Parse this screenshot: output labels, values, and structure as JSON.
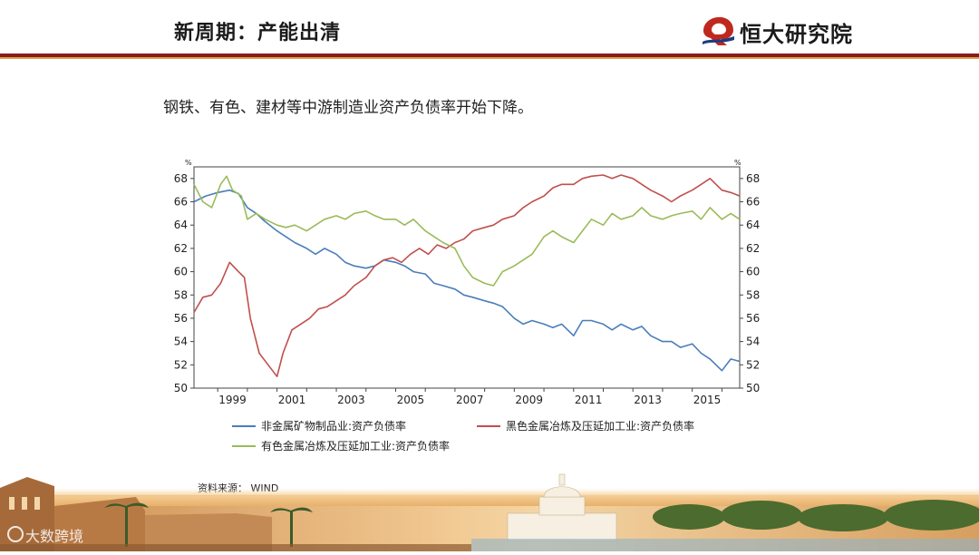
{
  "header": {
    "title": "新周期：产能出清",
    "logo_text": "恒大研究院"
  },
  "subtitle": "钢铁、有色、建材等中游制造业资产负债率开始下降。",
  "source": "资料来源： WIND",
  "watermark": "大数跨境",
  "colors": {
    "blue": "#4a7ebb",
    "red": "#c0504d",
    "green": "#9bbb59",
    "header_rule": "#8b1a1a",
    "logo_red": "#c0281e"
  },
  "chart_data": {
    "type": "line",
    "title": "",
    "y_unit_left": "%",
    "y_unit_right": "%",
    "ylim": [
      50,
      69
    ],
    "yticks": [
      50,
      52,
      54,
      56,
      58,
      60,
      62,
      64,
      66,
      68
    ],
    "xlim": [
      1998.2,
      2016.6
    ],
    "xticks": [
      "1999",
      "2001",
      "2003",
      "2005",
      "2007",
      "2009",
      "2011",
      "2013",
      "2015"
    ],
    "grid": false,
    "legend_position": "bottom",
    "series": [
      {
        "name": "非金属矿物制品业:资产负债率",
        "color": "#4a7ebb",
        "x": [
          1998.2,
          1998.6,
          1999.0,
          1999.4,
          1999.7,
          2000.0,
          2000.3,
          2000.6,
          2001.0,
          2001.3,
          2001.6,
          2002.0,
          2002.3,
          2002.6,
          2003.0,
          2003.3,
          2003.6,
          2004.0,
          2004.3,
          2004.6,
          2005.0,
          2005.3,
          2005.6,
          2006.0,
          2006.3,
          2006.6,
          2007.0,
          2007.3,
          2007.6,
          2008.0,
          2008.3,
          2008.6,
          2009.0,
          2009.3,
          2009.6,
          2010.0,
          2010.3,
          2010.6,
          2011.0,
          2011.3,
          2011.6,
          2012.0,
          2012.3,
          2012.6,
          2013.0,
          2013.3,
          2013.6,
          2014.0,
          2014.3,
          2014.6,
          2015.0,
          2015.3,
          2015.6,
          2016.0,
          2016.3,
          2016.6
        ],
        "y": [
          66.0,
          66.5,
          66.8,
          67.0,
          66.7,
          65.5,
          65.0,
          64.3,
          63.5,
          63.0,
          62.5,
          62.0,
          61.5,
          62.0,
          61.5,
          60.8,
          60.5,
          60.3,
          60.5,
          61.0,
          60.8,
          60.5,
          60.0,
          59.8,
          59.0,
          58.8,
          58.5,
          58.0,
          57.8,
          57.5,
          57.3,
          57.0,
          56.0,
          55.5,
          55.8,
          55.5,
          55.2,
          55.5,
          54.5,
          55.8,
          55.8,
          55.5,
          55.0,
          55.5,
          55.0,
          55.3,
          54.5,
          54.0,
          54.0,
          53.5,
          53.8,
          53.0,
          52.5,
          51.5,
          52.5,
          52.3
        ]
      },
      {
        "name": "黑色金属冶炼及压延加工业:资产负债率",
        "color": "#c0504d",
        "x": [
          1998.2,
          1998.5,
          1998.8,
          1999.1,
          1999.4,
          1999.7,
          1999.9,
          2000.1,
          2000.4,
          2000.7,
          2001.0,
          2001.2,
          2001.5,
          2001.8,
          2002.1,
          2002.4,
          2002.7,
          2003.0,
          2003.3,
          2003.6,
          2004.0,
          2004.3,
          2004.6,
          2004.9,
          2005.2,
          2005.5,
          2005.8,
          2006.1,
          2006.4,
          2006.7,
          2007.0,
          2007.3,
          2007.6,
          2008.0,
          2008.3,
          2008.6,
          2009.0,
          2009.3,
          2009.6,
          2010.0,
          2010.3,
          2010.6,
          2011.0,
          2011.3,
          2011.6,
          2012.0,
          2012.3,
          2012.6,
          2013.0,
          2013.3,
          2013.6,
          2014.0,
          2014.3,
          2014.6,
          2015.0,
          2015.3,
          2015.6,
          2016.0,
          2016.3,
          2016.6
        ],
        "y": [
          56.5,
          57.8,
          58.0,
          59.0,
          60.8,
          60.0,
          59.5,
          56.0,
          53.0,
          52.0,
          51.0,
          53.0,
          55.0,
          55.5,
          56.0,
          56.8,
          57.0,
          57.5,
          58.0,
          58.8,
          59.5,
          60.5,
          61.0,
          61.2,
          60.8,
          61.5,
          62.0,
          61.5,
          62.3,
          62.0,
          62.5,
          62.8,
          63.5,
          63.8,
          64.0,
          64.5,
          64.8,
          65.5,
          66.0,
          66.5,
          67.2,
          67.5,
          67.5,
          68.0,
          68.2,
          68.3,
          68.0,
          68.3,
          68.0,
          67.5,
          67.0,
          66.5,
          66.0,
          66.5,
          67.0,
          67.5,
          68.0,
          67.0,
          66.8,
          66.5
        ]
      },
      {
        "name": "有色金属冶炼及压延加工业:资产负债率",
        "color": "#9bbb59",
        "x": [
          1998.2,
          1998.5,
          1998.8,
          1999.1,
          1999.3,
          1999.5,
          1999.8,
          2000.0,
          2000.3,
          2000.6,
          2001.0,
          2001.3,
          2001.6,
          2002.0,
          2002.3,
          2002.6,
          2003.0,
          2003.3,
          2003.6,
          2004.0,
          2004.3,
          2004.6,
          2005.0,
          2005.3,
          2005.6,
          2006.0,
          2006.3,
          2006.6,
          2007.0,
          2007.3,
          2007.6,
          2008.0,
          2008.3,
          2008.6,
          2009.0,
          2009.3,
          2009.6,
          2010.0,
          2010.3,
          2010.6,
          2011.0,
          2011.3,
          2011.6,
          2012.0,
          2012.3,
          2012.6,
          2013.0,
          2013.3,
          2013.6,
          2014.0,
          2014.3,
          2014.6,
          2015.0,
          2015.3,
          2015.6,
          2016.0,
          2016.3,
          2016.6
        ],
        "y": [
          67.5,
          66.0,
          65.5,
          67.5,
          68.2,
          67.0,
          66.5,
          64.5,
          65.0,
          64.5,
          64.0,
          63.8,
          64.0,
          63.5,
          64.0,
          64.5,
          64.8,
          64.5,
          65.0,
          65.2,
          64.8,
          64.5,
          64.5,
          64.0,
          64.5,
          63.5,
          63.0,
          62.5,
          62.0,
          60.5,
          59.5,
          59.0,
          58.8,
          60.0,
          60.5,
          61.0,
          61.5,
          63.0,
          63.5,
          63.0,
          62.5,
          63.5,
          64.5,
          64.0,
          65.0,
          64.5,
          64.8,
          65.5,
          64.8,
          64.5,
          64.8,
          65.0,
          65.2,
          64.5,
          65.5,
          64.5,
          65.0,
          64.5
        ]
      }
    ]
  }
}
